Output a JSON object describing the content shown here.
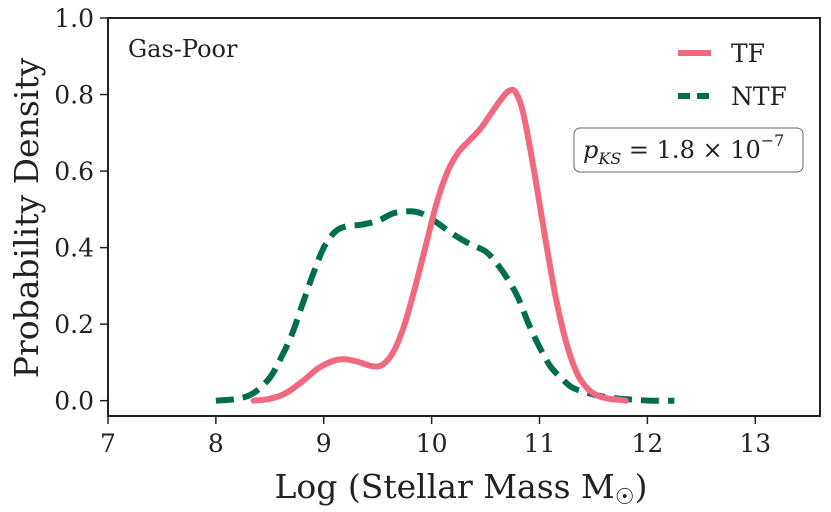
{
  "chart_data": {
    "type": "line",
    "title": "",
    "annotation": "Gas-Poor",
    "stat_label": "p_KS = 1.8 × 10⁻⁷",
    "stat_parts": {
      "symbol": "p",
      "subscript": "KS",
      "equals": " = 1.8 × 10",
      "exponent": "−7"
    },
    "xlabel": "Log (Stellar Mass M☉)",
    "xlabel_parts": {
      "main": "Log (Stellar Mass M",
      "sub": "☉",
      "close": ")"
    },
    "ylabel": "Probability Density",
    "xlim": [
      7,
      13.6
    ],
    "ylim": [
      -0.04,
      1.0
    ],
    "xticks": [
      7,
      8,
      9,
      10,
      11,
      12,
      13
    ],
    "yticks": [
      0.0,
      0.2,
      0.4,
      0.6,
      0.8,
      1.0
    ],
    "legend_position": "top-right",
    "series": [
      {
        "name": "TF",
        "color": "#f0697f",
        "style": "solid",
        "x": [
          8.35,
          8.5,
          8.65,
          8.8,
          8.95,
          9.1,
          9.2,
          9.3,
          9.45,
          9.55,
          9.65,
          9.75,
          9.85,
          9.95,
          10.05,
          10.15,
          10.25,
          10.35,
          10.45,
          10.55,
          10.65,
          10.72,
          10.78,
          10.85,
          10.95,
          11.05,
          11.15,
          11.25,
          11.35,
          11.45,
          11.55,
          11.65,
          11.75,
          11.8
        ],
        "y": [
          0.0,
          0.005,
          0.02,
          0.05,
          0.085,
          0.105,
          0.108,
          0.103,
          0.09,
          0.095,
          0.13,
          0.2,
          0.3,
          0.41,
          0.52,
          0.6,
          0.65,
          0.68,
          0.71,
          0.75,
          0.79,
          0.81,
          0.805,
          0.75,
          0.6,
          0.43,
          0.27,
          0.15,
          0.07,
          0.03,
          0.012,
          0.005,
          0.002,
          0.0
        ]
      },
      {
        "name": "NTF",
        "color": "#006e4e",
        "style": "dashed",
        "x": [
          8.0,
          8.2,
          8.35,
          8.5,
          8.6,
          8.7,
          8.8,
          8.9,
          9.0,
          9.1,
          9.2,
          9.35,
          9.5,
          9.65,
          9.8,
          9.9,
          10.0,
          10.1,
          10.2,
          10.35,
          10.5,
          10.6,
          10.7,
          10.8,
          10.9,
          11.0,
          11.1,
          11.2,
          11.3,
          11.45,
          11.6,
          11.75,
          11.9,
          12.05,
          12.25
        ],
        "y": [
          0.0,
          0.005,
          0.02,
          0.06,
          0.11,
          0.17,
          0.25,
          0.33,
          0.4,
          0.44,
          0.455,
          0.46,
          0.47,
          0.49,
          0.495,
          0.49,
          0.475,
          0.455,
          0.435,
          0.41,
          0.39,
          0.36,
          0.32,
          0.27,
          0.2,
          0.14,
          0.09,
          0.06,
          0.035,
          0.02,
          0.01,
          0.005,
          0.002,
          0.0,
          0.0
        ]
      }
    ]
  }
}
